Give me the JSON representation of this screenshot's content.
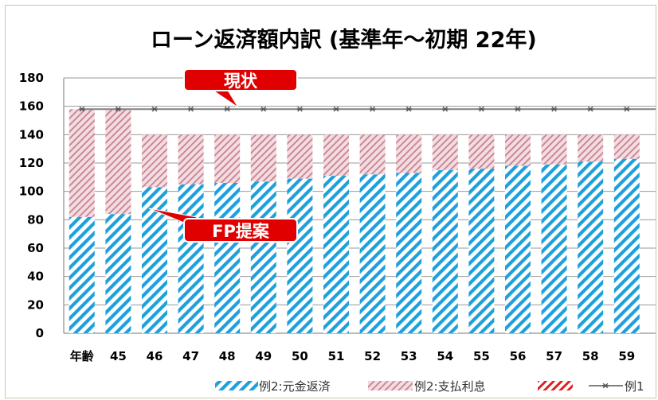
{
  "chart_data": {
    "type": "bar",
    "title": "ローン返済額内訳 (基準年～初期 22年) ",
    "categories": [
      "年齢",
      "45",
      "46",
      "47",
      "48",
      "49",
      "50",
      "51",
      "52",
      "53",
      "54",
      "55",
      "56",
      "57",
      "58",
      "59"
    ],
    "yticks": [
      "0",
      "20",
      "40",
      "60",
      "80",
      "100",
      "120",
      "140",
      "160",
      "180"
    ],
    "ylim": [
      0,
      180
    ],
    "grid": true,
    "series": [
      {
        "name": "例2:元金返済",
        "kind": "bar",
        "pattern": "blue-diagonal-hatch",
        "color": "#1ea0dc",
        "values": [
          82,
          84,
          103,
          105,
          106,
          107,
          109,
          111,
          112,
          113,
          115,
          116,
          118,
          119,
          121,
          123
        ]
      },
      {
        "name": "例2:支払利息",
        "kind": "bar",
        "pattern": "pink-diagonal-hatch",
        "color": "#c98a96",
        "values": [
          76,
          74,
          37,
          35,
          34,
          33,
          31,
          29,
          28,
          27,
          25,
          24,
          22,
          21,
          19,
          17
        ]
      },
      {
        "name": "",
        "kind": "legend-swatch",
        "pattern": "red-diagonal-hatch",
        "color": "#e52020"
      },
      {
        "name": "例1",
        "kind": "line",
        "marker": "asterisk",
        "color": "#808080",
        "values": [
          158,
          158,
          158,
          158,
          158,
          158,
          158,
          158,
          158,
          158,
          158,
          158,
          158,
          158,
          158,
          158
        ]
      }
    ],
    "annotations": [
      {
        "text": "現状",
        "points_to": "例1 line at ~158",
        "color": "#e00000"
      },
      {
        "text": "FP提案",
        "points_to": "bar tops at age 46 (~103)",
        "color": "#e00000"
      }
    ],
    "legend": "bottom"
  }
}
